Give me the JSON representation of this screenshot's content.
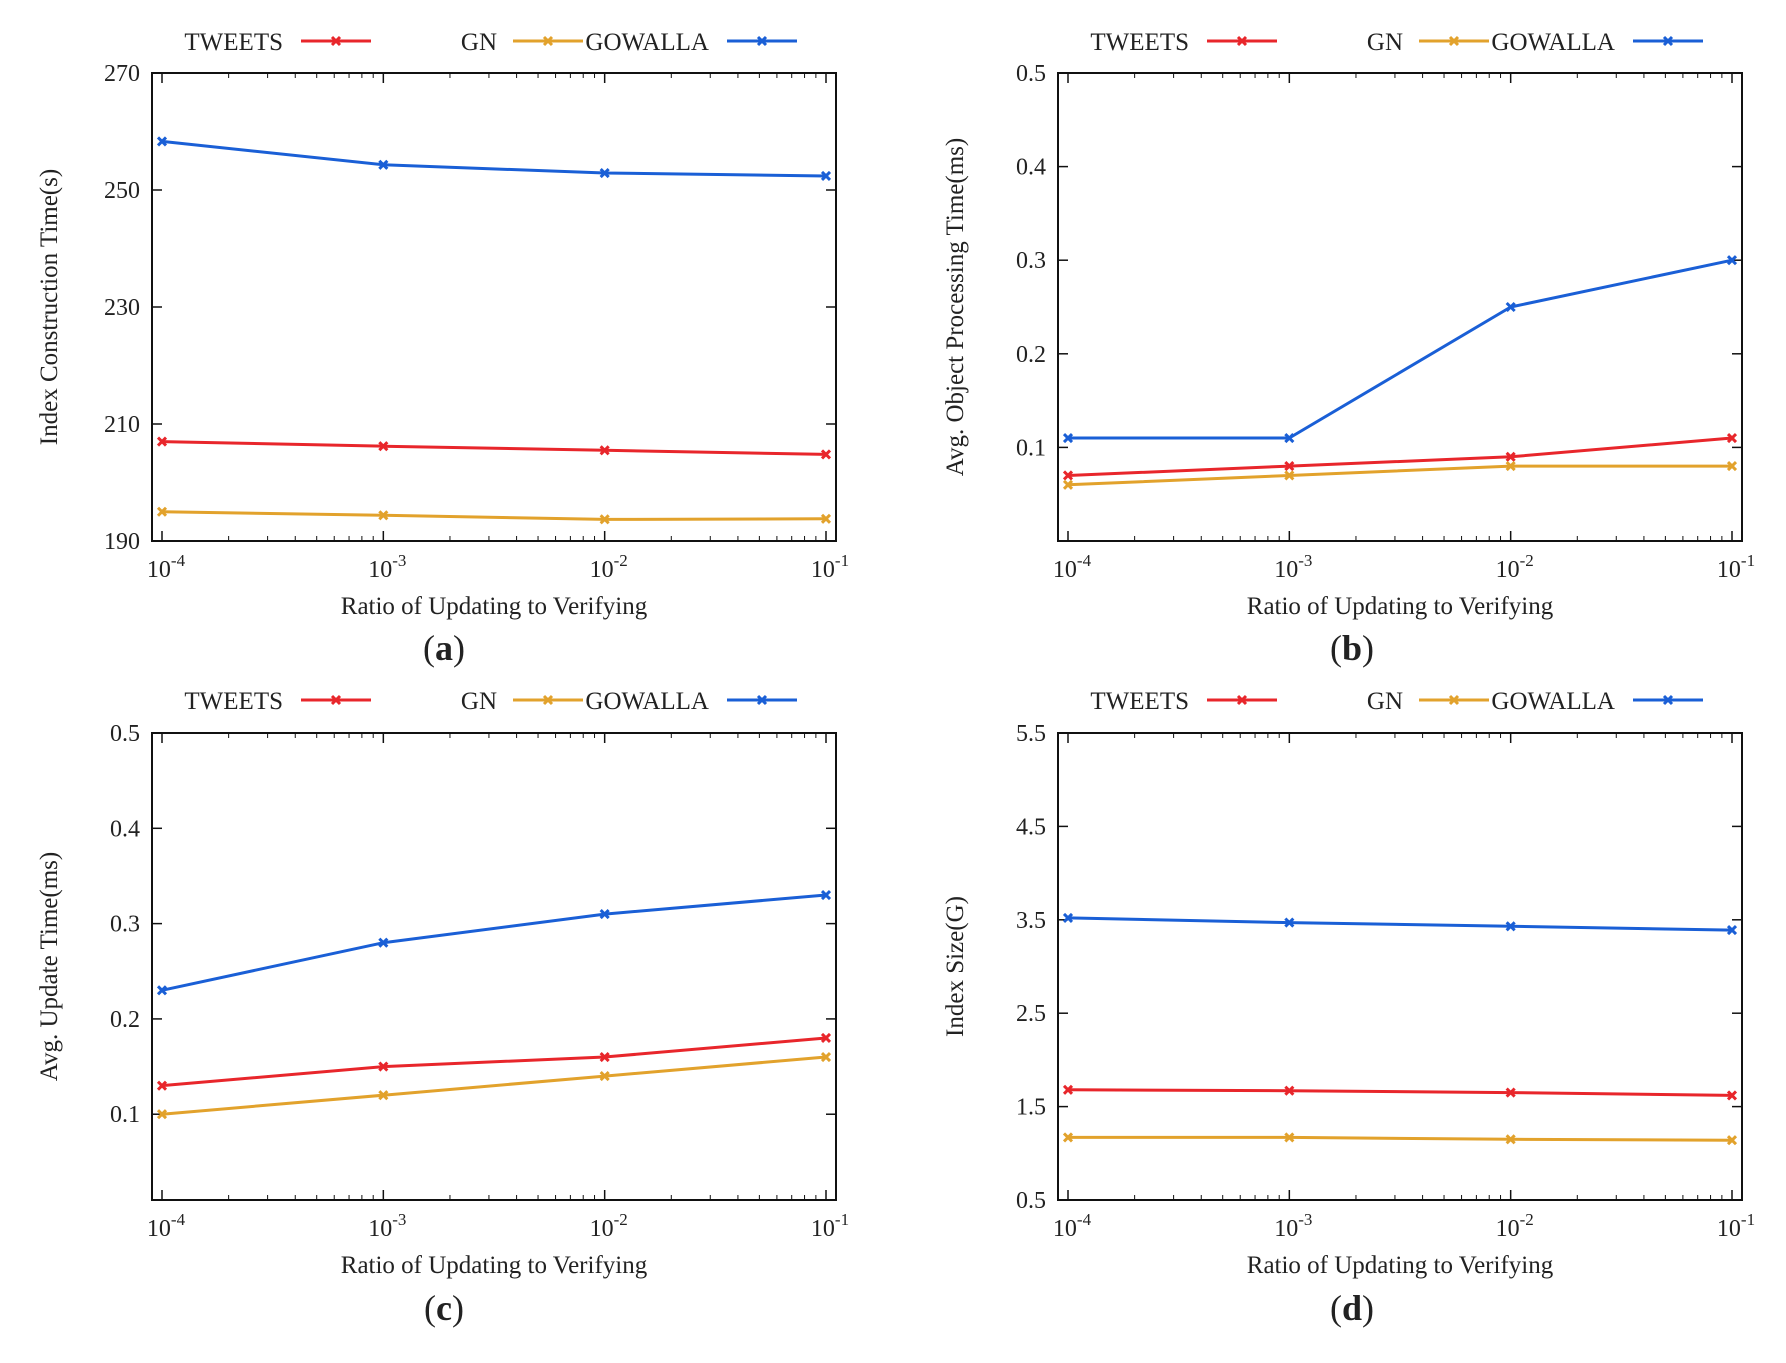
{
  "colors": {
    "tweets": "#e8262b",
    "gn": "#e2a22c",
    "gowalla": "#1a5fd6",
    "axis": "#111111"
  },
  "chart_data": [
    {
      "type": "line",
      "caption": "a",
      "xlabel": "Ratio of Updating to Verifying",
      "ylabel": "Index Construction Time(s)",
      "x_ticks": [
        "-4",
        "-3",
        "-2",
        "-1"
      ],
      "x_tick_base": "10",
      "x_scale": "log",
      "x": [
        0.0001,
        0.001,
        0.01,
        0.1
      ],
      "ylim": [
        190,
        270
      ],
      "y_ticks": [
        "190",
        "210",
        "230",
        "250",
        "270"
      ],
      "legend_position": "top",
      "series": [
        {
          "name": "TWEETS",
          "color_key": "tweets",
          "values": [
            207,
            206.2,
            205.5,
            204.8
          ]
        },
        {
          "name": "GN",
          "color_key": "gn",
          "values": [
            195,
            194.4,
            193.7,
            193.8
          ]
        },
        {
          "name": "GOWALLA",
          "color_key": "gowalla",
          "values": [
            258.3,
            254.3,
            252.9,
            252.4
          ]
        }
      ]
    },
    {
      "type": "line",
      "caption": "b",
      "xlabel": "Ratio of Updating to Verifying",
      "ylabel": "Avg. Object Processing Time(ms)",
      "x_ticks": [
        "-4",
        "-3",
        "-2",
        "-1"
      ],
      "x_tick_base": "10",
      "x_scale": "log",
      "x": [
        0.0001,
        0.001,
        0.01,
        0.1
      ],
      "ylim": [
        0,
        0.5
      ],
      "y_ticks": [
        "0.1",
        "0.2",
        "0.3",
        "0.4",
        "0.5"
      ],
      "legend_position": "top",
      "series": [
        {
          "name": "TWEETS",
          "color_key": "tweets",
          "values": [
            0.07,
            0.08,
            0.09,
            0.11
          ]
        },
        {
          "name": "GN",
          "color_key": "gn",
          "values": [
            0.06,
            0.07,
            0.08,
            0.08
          ]
        },
        {
          "name": "GOWALLA",
          "color_key": "gowalla",
          "values": [
            0.11,
            0.11,
            0.25,
            0.3
          ]
        }
      ]
    },
    {
      "type": "line",
      "caption": "c",
      "xlabel": "Ratio of Updating to Verifying",
      "ylabel": "Avg. Update Time(ms)",
      "x_ticks": [
        "-4",
        "-3",
        "-2",
        "-1"
      ],
      "x_tick_base": "10",
      "x_scale": "log",
      "x": [
        0.0001,
        0.001,
        0.01,
        0.1
      ],
      "ylim": [
        0.01,
        0.5
      ],
      "y_ticks": [
        "0.1",
        "0.2",
        "0.3",
        "0.4",
        "0.5"
      ],
      "legend_position": "top",
      "series": [
        {
          "name": "TWEETS",
          "color_key": "tweets",
          "values": [
            0.13,
            0.15,
            0.16,
            0.18
          ]
        },
        {
          "name": "GN",
          "color_key": "gn",
          "values": [
            0.1,
            0.12,
            0.14,
            0.16
          ]
        },
        {
          "name": "GOWALLA",
          "color_key": "gowalla",
          "values": [
            0.23,
            0.28,
            0.31,
            0.33
          ]
        }
      ]
    },
    {
      "type": "line",
      "caption": "d",
      "xlabel": "Ratio of Updating to Verifying",
      "ylabel": "Index Size(G)",
      "x_ticks": [
        "-4",
        "-3",
        "-2",
        "-1"
      ],
      "x_tick_base": "10",
      "x_scale": "log",
      "x": [
        0.0001,
        0.001,
        0.01,
        0.1
      ],
      "ylim": [
        0.5,
        5.5
      ],
      "y_ticks": [
        "0.5",
        "1.5",
        "2.5",
        "3.5",
        "4.5",
        "5.5"
      ],
      "legend_position": "top",
      "series": [
        {
          "name": "TWEETS",
          "color_key": "tweets",
          "values": [
            1.68,
            1.67,
            1.65,
            1.62
          ]
        },
        {
          "name": "GN",
          "color_key": "gn",
          "values": [
            1.17,
            1.17,
            1.15,
            1.14
          ]
        },
        {
          "name": "GOWALLA",
          "color_key": "gowalla",
          "values": [
            3.52,
            3.47,
            3.43,
            3.39
          ]
        }
      ]
    }
  ]
}
